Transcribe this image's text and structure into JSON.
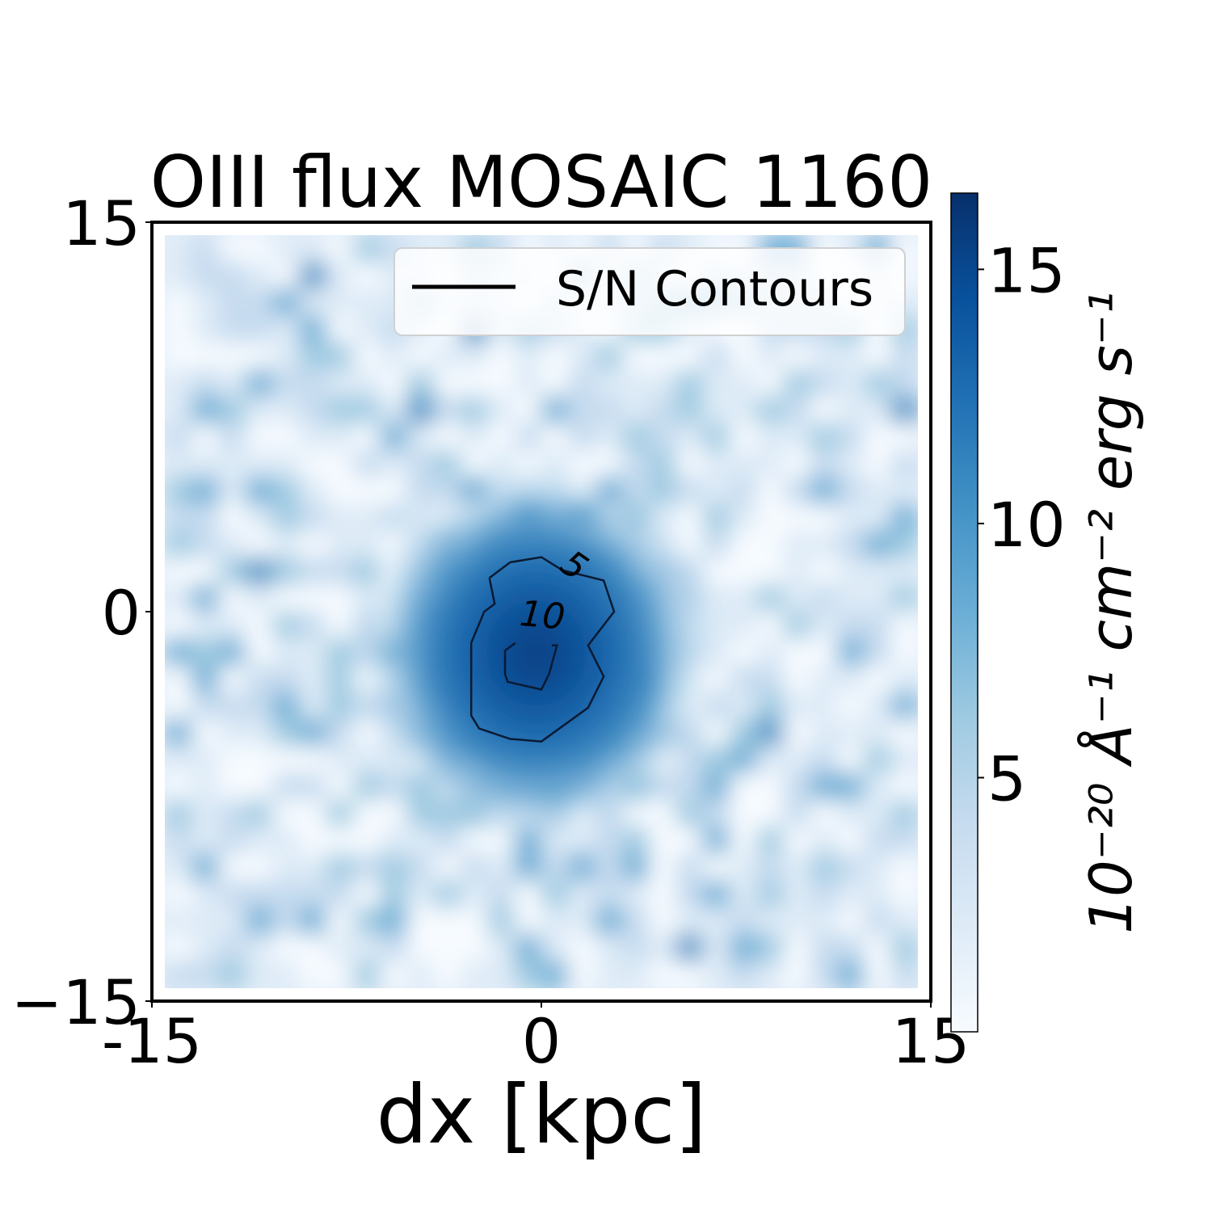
{
  "chart_data": {
    "type": "heatmap",
    "title": "OIII flux MOSAIC 1160",
    "xlabel": "dx [kpc]",
    "ylabel": "",
    "xlim": [
      -15,
      15
    ],
    "ylim": [
      -15,
      15
    ],
    "x_ticks": [
      {
        "value": -15,
        "label": "-15"
      },
      {
        "value": 0,
        "label": "0"
      },
      {
        "value": 15,
        "label": "15"
      }
    ],
    "y_ticks": [
      {
        "value": 15,
        "label": "15"
      },
      {
        "value": 0,
        "label": "0"
      },
      {
        "value": -15,
        "label": "−15"
      }
    ],
    "colormap": "Blues",
    "colorbar": {
      "label": "10⁻²⁰ Å⁻¹ cm⁻² erg s⁻¹",
      "range": [
        0,
        16.5
      ],
      "ticks": [
        {
          "value": 5,
          "label": "5"
        },
        {
          "value": 10,
          "label": "10"
        },
        {
          "value": 15,
          "label": "15"
        }
      ]
    },
    "legend": {
      "placement": "upper-right",
      "entries": [
        {
          "label": "S/N Contours",
          "color": "#000000"
        }
      ]
    },
    "source": {
      "x": -0.2,
      "y": -1.6,
      "peak_flux": 16
    },
    "contours": [
      {
        "level": 5,
        "label": "5",
        "label_position": [
          1.0,
          1.4
        ],
        "points": [
          [
            -2.0,
            1.3
          ],
          [
            -1.2,
            1.9
          ],
          [
            0,
            2.1
          ],
          [
            0.8,
            1.6
          ],
          [
            2.4,
            1.2
          ],
          [
            2.8,
            0
          ],
          [
            1.8,
            -1.3
          ],
          [
            2.4,
            -2.5
          ],
          [
            1.8,
            -3.7
          ],
          [
            0,
            -5
          ],
          [
            -1.2,
            -4.9
          ],
          [
            -2.4,
            -4.5
          ],
          [
            -2.7,
            -4
          ],
          [
            -2.7,
            -2.4
          ],
          [
            -2.7,
            -1.2
          ],
          [
            -2.2,
            0
          ],
          [
            -1.8,
            0.3
          ],
          [
            -2.0,
            1.3
          ]
        ]
      },
      {
        "level": 10,
        "label": "10",
        "label_position": [
          0.0,
          -0.6
        ],
        "points": [
          [
            -1.0,
            -1.2
          ],
          [
            -1.4,
            -1.5
          ],
          [
            -1.4,
            -2.4
          ],
          [
            -1.3,
            -2.7
          ],
          [
            0,
            -3
          ],
          [
            0.3,
            -2.4
          ],
          [
            0.6,
            -1.3
          ],
          [
            0.4,
            -1.3
          ]
        ]
      }
    ]
  }
}
